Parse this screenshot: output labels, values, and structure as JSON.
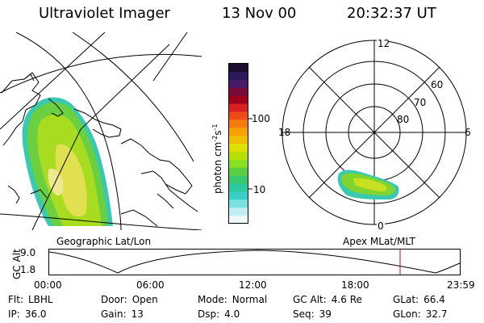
{
  "header": {
    "title": "Ultraviolet Imager",
    "date": "13 Nov 00",
    "time": "20:32:37 UT"
  },
  "colorbar": {
    "unit": "photon cm",
    "unit_exp1": "-2",
    "unit_s": "s",
    "unit_exp2": "-1",
    "ticks": [
      "100",
      "10"
    ],
    "colors": [
      "#1a0d2e",
      "#2a1a5a",
      "#4a1a6a",
      "#7a0a3a",
      "#a0001a",
      "#d82020",
      "#ee4a1a",
      "#f57a10",
      "#f8a000",
      "#f0c000",
      "#e0e000",
      "#b8e000",
      "#88e020",
      "#5ad040",
      "#38c870",
      "#2ec8a0",
      "#3ad0c8",
      "#7ae0e0",
      "#c0eef0",
      "#eef8f8"
    ]
  },
  "panels": {
    "geo_label": "Geographic Lat/Lon",
    "apex_label": "Apex MLat/MLT"
  },
  "polar": {
    "lat_labels": [
      "60",
      "70",
      "80"
    ],
    "mlt_labels": {
      "top": "12",
      "bottom": "0",
      "left": "18",
      "right": "6"
    }
  },
  "timeline": {
    "axis_label": "GC Alt",
    "y_top": "9.0",
    "y_bottom": "1.8",
    "ticks": [
      "00:00",
      "06:00",
      "12:00",
      "18:00",
      "23:59"
    ],
    "marker_color": "#d40000"
  },
  "info": [
    [
      {
        "key": "Flt:",
        "val": "LBHL"
      },
      {
        "key": "Door:",
        "val": "Open"
      },
      {
        "key": "Mode:",
        "val": "Normal"
      },
      {
        "key": "GC Alt:",
        "val": "4.6 Re"
      },
      {
        "key": "GLat:",
        "val": "66.4"
      }
    ],
    [
      {
        "key": "IP:",
        "val": "36.0"
      },
      {
        "key": "Gain:",
        "val": "13"
      },
      {
        "key": "Dsp:",
        "val": "4.0"
      },
      {
        "key": "Seq:",
        "val": "39"
      },
      {
        "key": "GLon:",
        "val": "32.7"
      }
    ]
  ]
}
